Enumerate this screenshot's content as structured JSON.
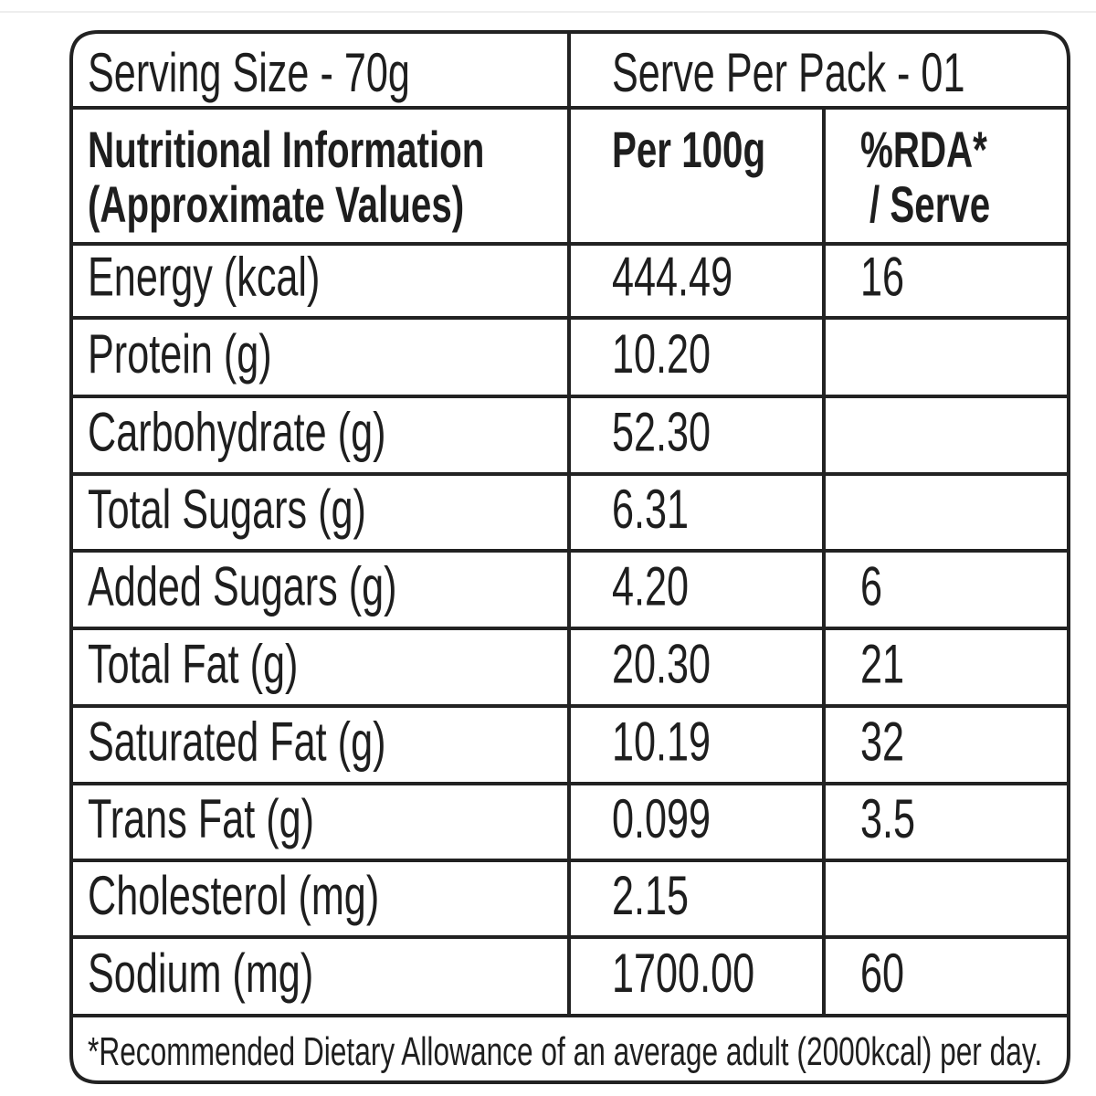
{
  "header": {
    "serving_size": "Serving Size - 70g",
    "serve_per_pack": "Serve Per Pack - 01"
  },
  "table": {
    "columns": [
      [
        "Nutritional Information",
        "(Approximate Values)"
      ],
      [
        "Per 100g"
      ],
      [
        "%RDA*",
        "/ Serve"
      ]
    ],
    "rows": [
      {
        "nutrient": "Energy (kcal)",
        "per_100g": "444.49",
        "rda": "16"
      },
      {
        "nutrient": "Protein (g)",
        "per_100g": "10.20"
      },
      {
        "nutrient": "Carbohydrate (g)",
        "per_100g": "52.30"
      },
      {
        "nutrient": "Total Sugars (g)",
        "per_100g": "6.31"
      },
      {
        "nutrient": "Added Sugars (g)",
        "per_100g": "4.20",
        "rda": "6"
      },
      {
        "nutrient": "Total Fat (g)",
        "per_100g": "20.30",
        "rda": "21"
      },
      {
        "nutrient": "Saturated Fat (g)",
        "per_100g": "10.19",
        "rda": "32"
      },
      {
        "nutrient": "Trans Fat (g)",
        "per_100g": "0.099",
        "rda": "3.5"
      },
      {
        "nutrient": "Cholesterol (mg)",
        "per_100g": "2.15"
      },
      {
        "nutrient": "Sodium (mg)",
        "per_100g": "1700.00",
        "rda": "60"
      }
    ]
  },
  "footnote": "*Recommended Dietary Allowance of an average adult (2000kcal) per day."
}
